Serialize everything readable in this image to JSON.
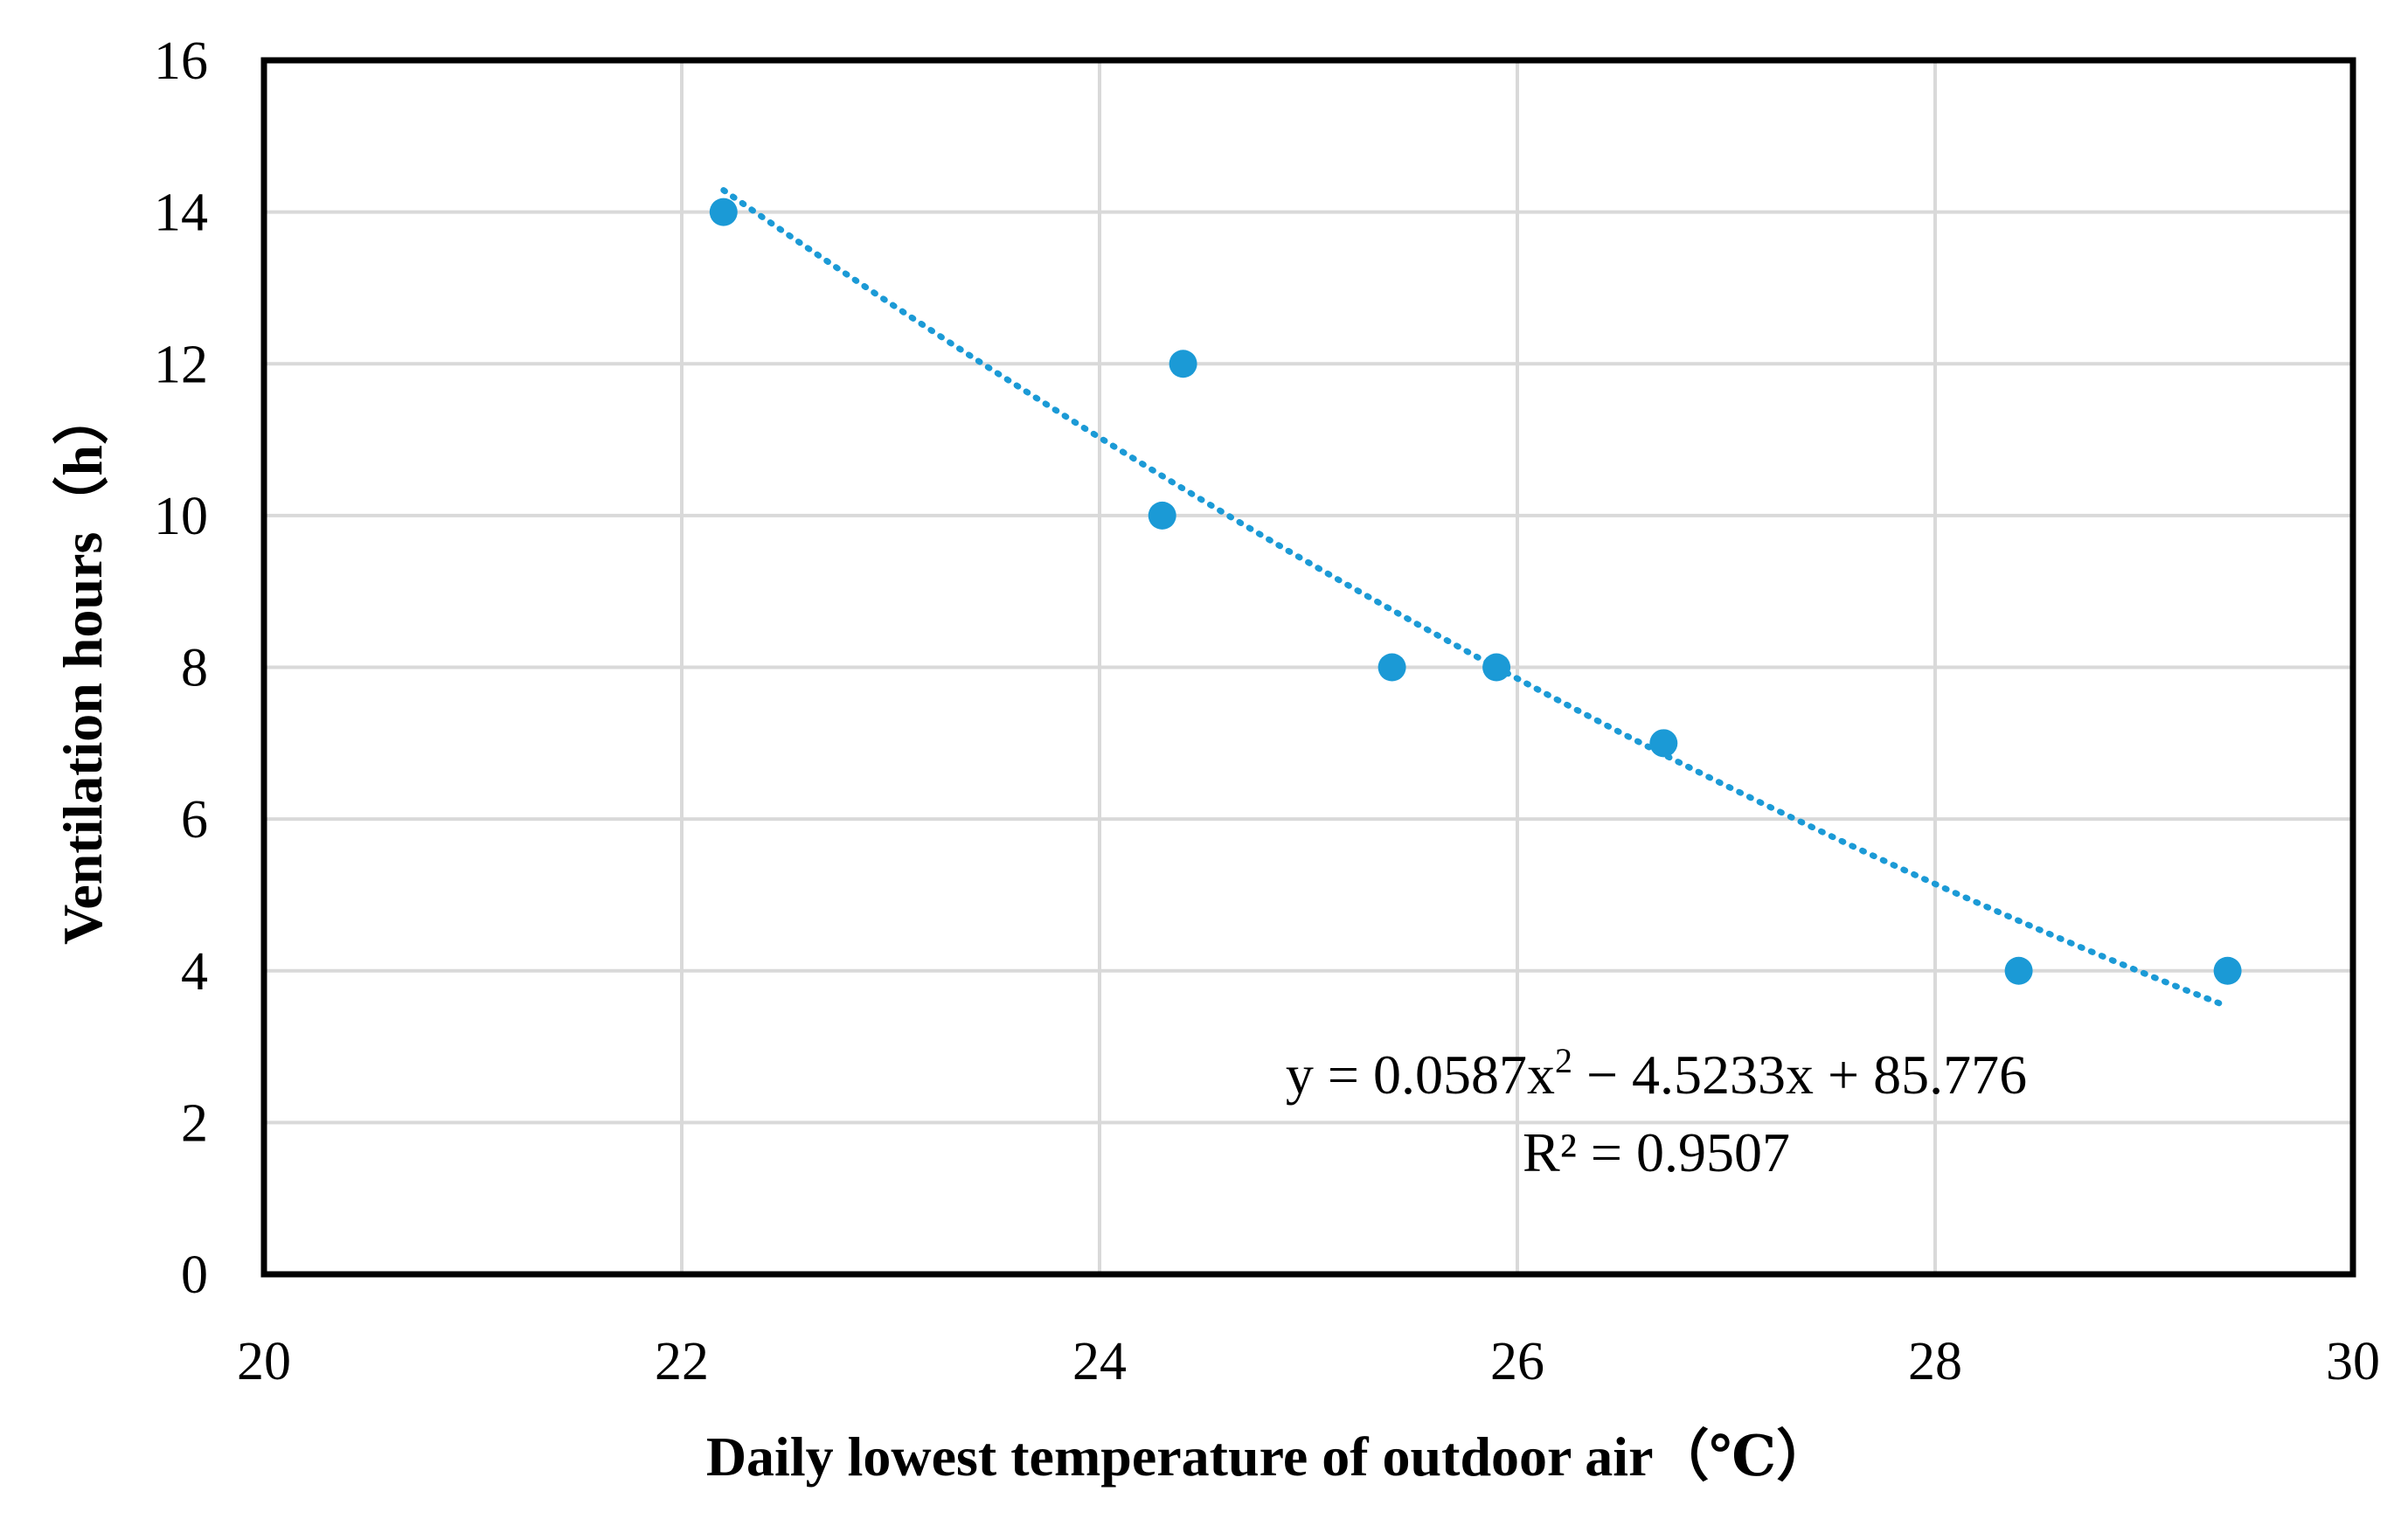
{
  "chart_data": {
    "type": "scatter",
    "title": "",
    "xlabel": "Daily lowest temperature of outdoor air（℃）",
    "ylabel": "Ventilation hours（h）",
    "xlim": [
      20,
      30
    ],
    "ylim": [
      0,
      16
    ],
    "xticks": [
      20,
      22,
      24,
      26,
      28,
      30
    ],
    "yticks": [
      0,
      2,
      4,
      6,
      8,
      10,
      12,
      14,
      16
    ],
    "grid": true,
    "legend": "none",
    "series": [
      {
        "name": "Ventilation hours",
        "color": "#1b9ad6",
        "x": [
          22.2,
          24.3,
          24.4,
          25.4,
          25.9,
          26.7,
          28.4,
          29.4
        ],
        "y": [
          14,
          10,
          12,
          8,
          8,
          7,
          4,
          4
        ]
      }
    ],
    "trendline": {
      "type": "polynomial",
      "order": 2,
      "style": "dotted",
      "color": "#1b9ad6",
      "coefficients": [
        0.0587,
        -4.5233,
        85.776
      ],
      "x_range": [
        22.2,
        29.4
      ],
      "equation": {
        "lhs": "y = 0.0587x",
        "exp": "2",
        "rhs": " − 4.5233x + 85.776"
      },
      "r_squared_label": "R² = 0.9507"
    }
  }
}
